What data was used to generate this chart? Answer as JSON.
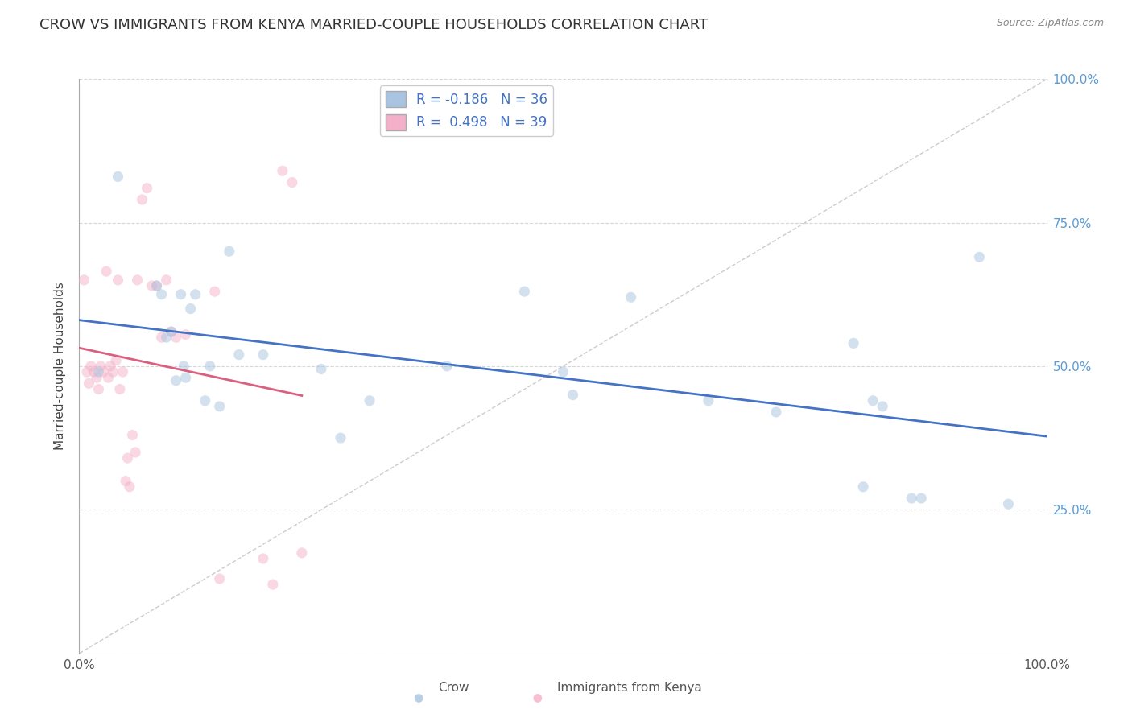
{
  "title": "CROW VS IMMIGRANTS FROM KENYA MARRIED-COUPLE HOUSEHOLDS CORRELATION CHART",
  "source": "Source: ZipAtlas.com",
  "ylabel": "Married-couple Households",
  "crow_R": -0.186,
  "crow_N": 36,
  "kenya_R": 0.498,
  "kenya_N": 39,
  "crow_color": "#a8c4e0",
  "kenya_color": "#f4b0c8",
  "crow_line_color": "#4472c4",
  "kenya_line_color": "#d96080",
  "diag_line_color": "#cccccc",
  "background_color": "#ffffff",
  "grid_color": "#d8d8d8",
  "crow_points_x": [
    0.02,
    0.04,
    0.08,
    0.085,
    0.09,
    0.095,
    0.1,
    0.105,
    0.108,
    0.11,
    0.115,
    0.12,
    0.13,
    0.135,
    0.145,
    0.155,
    0.165,
    0.19,
    0.25,
    0.27,
    0.3,
    0.38,
    0.46,
    0.5,
    0.51,
    0.57,
    0.65,
    0.72,
    0.8,
    0.81,
    0.82,
    0.83,
    0.86,
    0.87,
    0.93,
    0.96
  ],
  "crow_points_y": [
    0.49,
    0.83,
    0.64,
    0.625,
    0.55,
    0.56,
    0.475,
    0.625,
    0.5,
    0.48,
    0.6,
    0.625,
    0.44,
    0.5,
    0.43,
    0.7,
    0.52,
    0.52,
    0.495,
    0.375,
    0.44,
    0.5,
    0.63,
    0.49,
    0.45,
    0.62,
    0.44,
    0.42,
    0.54,
    0.29,
    0.44,
    0.43,
    0.27,
    0.27,
    0.69,
    0.26
  ],
  "kenya_points_x": [
    0.005,
    0.008,
    0.01,
    0.012,
    0.015,
    0.018,
    0.02,
    0.022,
    0.025,
    0.028,
    0.03,
    0.032,
    0.035,
    0.038,
    0.04,
    0.042,
    0.045,
    0.048,
    0.05,
    0.052,
    0.055,
    0.058,
    0.06,
    0.065,
    0.07,
    0.075,
    0.08,
    0.085,
    0.09,
    0.095,
    0.1,
    0.11,
    0.14,
    0.145,
    0.19,
    0.2,
    0.21,
    0.22,
    0.23
  ],
  "kenya_points_y": [
    0.65,
    0.49,
    0.47,
    0.5,
    0.49,
    0.48,
    0.46,
    0.5,
    0.49,
    0.665,
    0.48,
    0.5,
    0.49,
    0.51,
    0.65,
    0.46,
    0.49,
    0.3,
    0.34,
    0.29,
    0.38,
    0.35,
    0.65,
    0.79,
    0.81,
    0.64,
    0.64,
    0.55,
    0.65,
    0.56,
    0.55,
    0.555,
    0.63,
    0.13,
    0.165,
    0.12,
    0.84,
    0.82,
    0.175
  ],
  "ylim": [
    0.0,
    1.0
  ],
  "xlim": [
    0.0,
    1.0
  ],
  "ytick_positions": [
    0.0,
    0.25,
    0.5,
    0.75,
    1.0
  ],
  "ytick_labels_right": [
    "",
    "25.0%",
    "50.0%",
    "75.0%",
    "100.0%"
  ],
  "xtick_positions": [
    0.0,
    0.25,
    0.5,
    0.75,
    1.0
  ],
  "xtick_labels": [
    "0.0%",
    "",
    "",
    "",
    "100.0%"
  ],
  "marker_size": 90,
  "marker_alpha": 0.5,
  "title_fontsize": 13,
  "label_fontsize": 11,
  "tick_fontsize": 11,
  "legend_fontsize": 12,
  "tick_color": "#5b9bd5"
}
